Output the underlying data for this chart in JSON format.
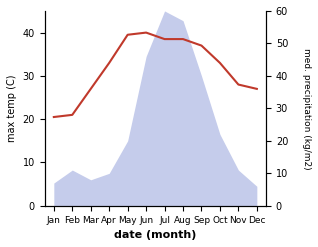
{
  "months": [
    "Jan",
    "Feb",
    "Mar",
    "Apr",
    "May",
    "Jun",
    "Jul",
    "Aug",
    "Sep",
    "Oct",
    "Nov",
    "Dec"
  ],
  "temperature": [
    20.5,
    21.0,
    27.0,
    33.0,
    39.5,
    40.0,
    38.5,
    38.5,
    37.0,
    33.0,
    28.0,
    27.0
  ],
  "precipitation_mm": [
    7,
    11,
    8,
    10,
    20,
    46,
    60,
    57,
    40,
    22,
    11,
    6
  ],
  "temp_color": "#c0392b",
  "precip_fill_color": "#c5cceb",
  "ylabel_left": "max temp (C)",
  "ylabel_right": "med. precipitation (kg/m2)",
  "xlabel": "date (month)",
  "ylim_left": [
    0,
    45
  ],
  "ylim_right": [
    0,
    60
  ],
  "temp_yticks": [
    0,
    10,
    20,
    30,
    40
  ],
  "precip_yticks": [
    0,
    10,
    20,
    30,
    40,
    50,
    60
  ],
  "background_color": "#ffffff"
}
